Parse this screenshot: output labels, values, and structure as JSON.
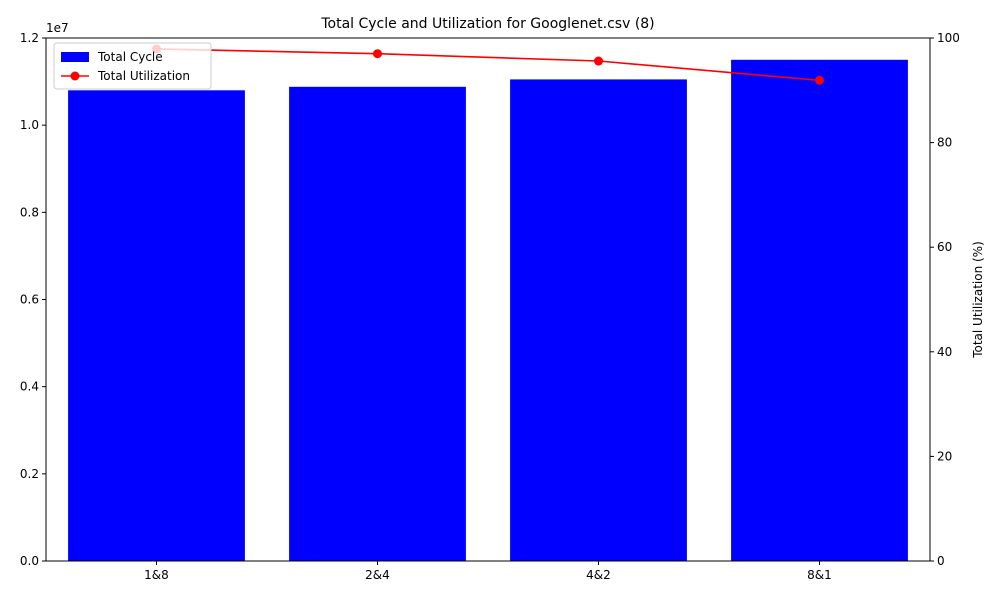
{
  "chart_data": {
    "type": "bar",
    "title": "Total Cycle and Utilization for Googlenet.csv (8)",
    "categories": [
      "1&8",
      "2&4",
      "4&2",
      "8&1"
    ],
    "y_left": {
      "ylabel": "",
      "ylim": [
        0,
        12000000
      ],
      "ticks": [
        0,
        2000000,
        4000000,
        6000000,
        8000000,
        10000000,
        12000000
      ],
      "tick_labels": [
        "0.0",
        "0.2",
        "0.4",
        "0.6",
        "0.8",
        "1.0",
        "1.2"
      ],
      "offset_label": "1e7"
    },
    "y_right": {
      "ylabel": "Total Utilization (%)",
      "ylim": [
        0,
        100
      ],
      "ticks": [
        0,
        20,
        40,
        60,
        80,
        100
      ],
      "tick_labels": [
        "0",
        "20",
        "40",
        "60",
        "80",
        "100"
      ]
    },
    "series": [
      {
        "name": "Total Cycle",
        "type": "bar",
        "axis": "left",
        "color": "#0000ff",
        "values": [
          10800000,
          10880000,
          11050000,
          11500000
        ]
      },
      {
        "name": "Total Utilization",
        "type": "line",
        "axis": "right",
        "color": "#ff0000",
        "marker": "circle",
        "values": [
          97.9,
          97.0,
          95.6,
          91.9
        ]
      }
    ],
    "legend": {
      "placement": "top-left"
    },
    "grid": false
  }
}
